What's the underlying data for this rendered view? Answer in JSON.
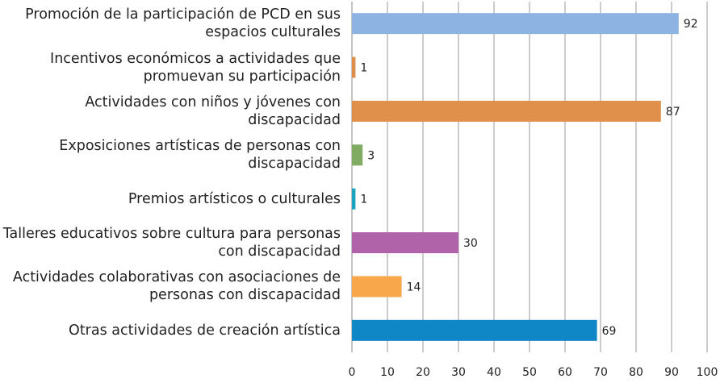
{
  "chart_data": {
    "type": "bar",
    "orientation": "horizontal",
    "categories": [
      "Promoción de la participación de PCD en sus espacios culturales",
      "Incentivos económicos a actividades que promuevan su participación",
      "Actividades con niños y jóvenes con discapacidad",
      "Exposiciones artísticas de personas con discapacidad",
      "Premios artísticos o culturales",
      "Talleres educativos sobre cultura para personas con discapacidad",
      "Actividades colaborativas con asociaciones de personas con discapacidad",
      "Otras actividades de creación artística"
    ],
    "values": [
      92,
      1,
      87,
      3,
      1,
      30,
      14,
      69
    ],
    "colors": [
      "#8db3e2",
      "#e0904a",
      "#e0904a",
      "#7fab63",
      "#1ba2c0",
      "#b063a8",
      "#f8a84a",
      "#0f86c6"
    ],
    "xlim": [
      0,
      100
    ],
    "xticks": [
      0,
      10,
      20,
      30,
      40,
      50,
      60,
      70,
      80,
      90,
      100
    ],
    "grid": true
  }
}
